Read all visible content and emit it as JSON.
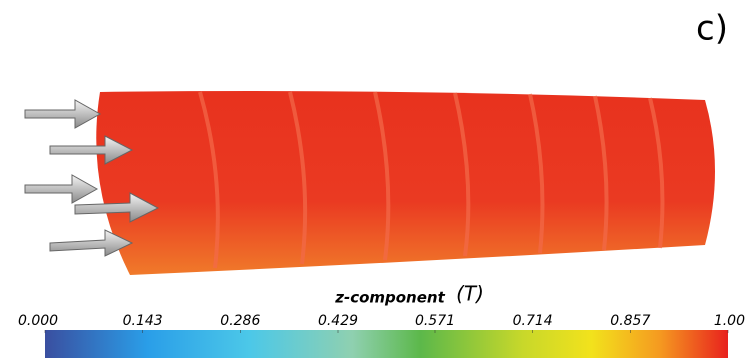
{
  "panel_label": "c)",
  "colorbar": {
    "title": "z-component",
    "unit": "(T)",
    "lim": [
      0,
      1
    ],
    "ticks": [
      {
        "value": 0,
        "label": "0.000"
      },
      0.143,
      0.286,
      0.429,
      0.571,
      0.714,
      0.857,
      {
        "value": 1,
        "label": "1.00"
      }
    ]
  }
}
